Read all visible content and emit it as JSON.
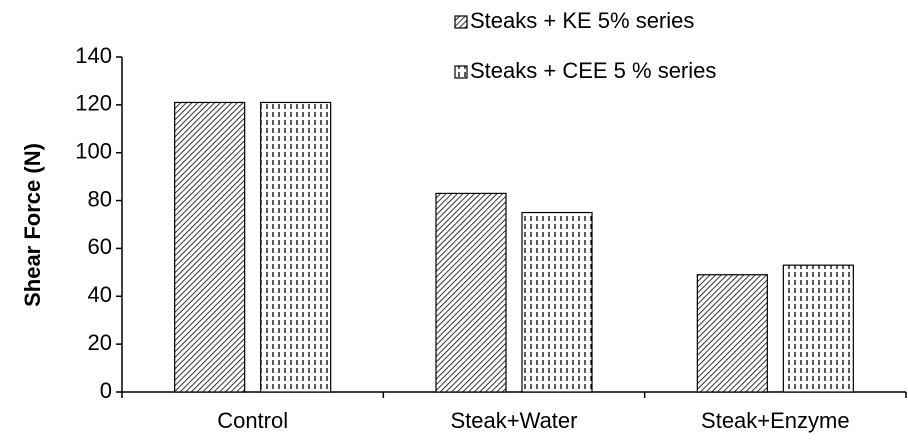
{
  "chart_data": {
    "type": "bar",
    "categories": [
      "Control",
      "Steak+Water",
      "Steak+Enzyme"
    ],
    "series": [
      {
        "name": "Steaks + KE 5% series",
        "color": "#000000",
        "hatch": "diagonal",
        "values": [
          121,
          83,
          49
        ]
      },
      {
        "name": "Steaks + CEE 5 % series",
        "color": "#000000",
        "hatch": "dashed-vertical",
        "values": [
          121,
          75,
          53
        ]
      }
    ],
    "y_label": "Shear Force (N)",
    "ylim": [
      0,
      140
    ],
    "yticks": [
      0,
      20,
      40,
      60,
      80,
      100,
      120,
      140
    ],
    "legend": "top-right"
  }
}
